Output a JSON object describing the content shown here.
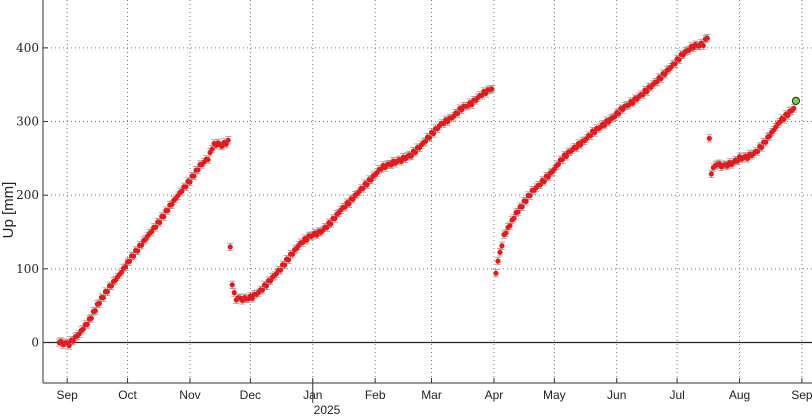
{
  "chart_data": {
    "type": "scatter",
    "title": "",
    "xlabel": "",
    "ylabel": "Up [mm]",
    "year_label": "2025",
    "x_range": [
      "2024-08-20",
      "2025-09-06"
    ],
    "ylim": [
      -55,
      465
    ],
    "y_ticks": [
      0,
      100,
      200,
      300,
      400
    ],
    "month_ticks": [
      {
        "date": "2024-09-01",
        "label": "Sep"
      },
      {
        "date": "2024-10-01",
        "label": "Oct"
      },
      {
        "date": "2024-11-01",
        "label": "Nov"
      },
      {
        "date": "2024-12-01",
        "label": "Dec"
      },
      {
        "date": "2025-01-01",
        "label": "Jan"
      },
      {
        "date": "2025-02-01",
        "label": "Feb"
      },
      {
        "date": "2025-03-01",
        "label": "Mar"
      },
      {
        "date": "2025-04-01",
        "label": "Apr"
      },
      {
        "date": "2025-05-01",
        "label": "May"
      },
      {
        "date": "2025-06-01",
        "label": "Jun"
      },
      {
        "date": "2025-07-01",
        "label": "Jul"
      },
      {
        "date": "2025-08-01",
        "label": "Aug"
      },
      {
        "date": "2025-09-01",
        "label": "Sep"
      }
    ],
    "year_boundary_date": "2025-01-01",
    "grid": true,
    "zero_line": true,
    "marker_color": "#e41a1c",
    "errorbar_color": "#999999",
    "highlight_color": "#7fd13b",
    "error_mm": 5,
    "segments": [
      {
        "name": "segment-1",
        "points": [
          [
            "2024-08-28",
            0
          ],
          [
            "2024-09-02",
            -2
          ],
          [
            "2024-09-07",
            12
          ],
          [
            "2024-09-12",
            30
          ],
          [
            "2024-09-17",
            55
          ],
          [
            "2024-09-22",
            75
          ],
          [
            "2024-09-27",
            92
          ],
          [
            "2024-10-02",
            112
          ],
          [
            "2024-10-07",
            130
          ],
          [
            "2024-10-12",
            148
          ],
          [
            "2024-10-17",
            165
          ],
          [
            "2024-10-22",
            185
          ],
          [
            "2024-10-27",
            203
          ],
          [
            "2024-11-01",
            220
          ],
          [
            "2024-11-06",
            240
          ],
          [
            "2024-11-10",
            250
          ],
          [
            "2024-11-13",
            270
          ],
          [
            "2024-11-17",
            268
          ],
          [
            "2024-11-20",
            273
          ]
        ]
      },
      {
        "name": "segment-2",
        "points": [
          [
            "2024-11-21",
            130
          ],
          [
            "2024-11-22",
            78
          ],
          [
            "2024-11-24",
            60
          ],
          [
            "2024-11-28",
            59
          ],
          [
            "2024-12-02",
            62
          ],
          [
            "2024-12-06",
            70
          ],
          [
            "2024-12-11",
            85
          ],
          [
            "2024-12-16",
            100
          ],
          [
            "2024-12-21",
            118
          ],
          [
            "2024-12-26",
            135
          ],
          [
            "2024-12-31",
            145
          ],
          [
            "2025-01-05",
            150
          ],
          [
            "2025-01-10",
            163
          ],
          [
            "2025-01-15",
            180
          ],
          [
            "2025-01-20",
            193
          ],
          [
            "2025-01-25",
            208
          ],
          [
            "2025-01-30",
            222
          ],
          [
            "2025-02-04",
            237
          ],
          [
            "2025-02-09",
            243
          ],
          [
            "2025-02-14",
            248
          ],
          [
            "2025-02-19",
            255
          ],
          [
            "2025-02-24",
            268
          ],
          [
            "2025-03-01",
            283
          ],
          [
            "2025-03-06",
            297
          ],
          [
            "2025-03-11",
            305
          ],
          [
            "2025-03-16",
            318
          ],
          [
            "2025-03-21",
            325
          ],
          [
            "2025-03-26",
            337
          ],
          [
            "2025-03-31",
            345
          ]
        ]
      },
      {
        "name": "segment-3",
        "points": [
          [
            "2025-04-02",
            95
          ],
          [
            "2025-04-04",
            122
          ],
          [
            "2025-04-06",
            145
          ],
          [
            "2025-04-09",
            160
          ],
          [
            "2025-04-12",
            175
          ],
          [
            "2025-04-16",
            190
          ],
          [
            "2025-04-20",
            205
          ],
          [
            "2025-04-25",
            218
          ],
          [
            "2025-04-30",
            232
          ],
          [
            "2025-05-05",
            250
          ],
          [
            "2025-05-10",
            262
          ],
          [
            "2025-05-15",
            272
          ],
          [
            "2025-05-20",
            285
          ],
          [
            "2025-05-25",
            295
          ],
          [
            "2025-05-30",
            305
          ],
          [
            "2025-06-04",
            318
          ],
          [
            "2025-06-09",
            327
          ],
          [
            "2025-06-14",
            338
          ],
          [
            "2025-06-19",
            350
          ],
          [
            "2025-06-24",
            363
          ],
          [
            "2025-06-29",
            377
          ],
          [
            "2025-07-04",
            392
          ],
          [
            "2025-07-09",
            402
          ],
          [
            "2025-07-14",
            405
          ],
          [
            "2025-07-16",
            415
          ]
        ]
      },
      {
        "name": "segment-4",
        "points": [
          [
            "2025-07-17",
            277
          ],
          [
            "2025-07-18",
            230
          ],
          [
            "2025-07-20",
            242
          ],
          [
            "2025-07-24",
            240
          ],
          [
            "2025-07-28",
            243
          ],
          [
            "2025-08-01",
            250
          ],
          [
            "2025-08-05",
            252
          ],
          [
            "2025-08-09",
            258
          ],
          [
            "2025-08-13",
            270
          ],
          [
            "2025-08-17",
            285
          ],
          [
            "2025-08-21",
            300
          ],
          [
            "2025-08-25",
            310
          ],
          [
            "2025-08-28",
            318
          ]
        ]
      }
    ],
    "highlight_point": [
      "2025-08-29",
      328
    ]
  }
}
